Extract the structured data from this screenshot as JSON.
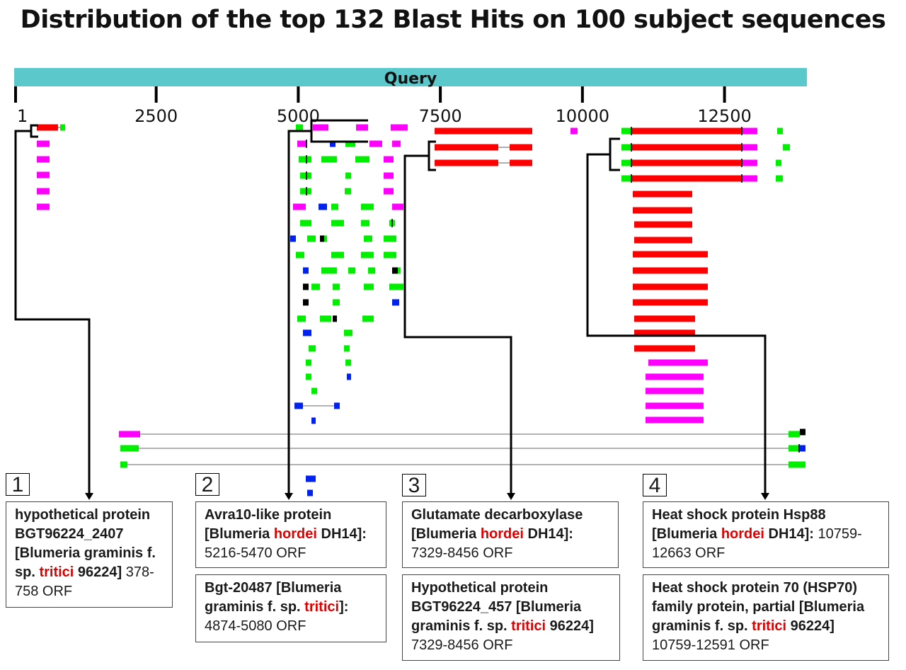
{
  "title": "Distribution of the top 132 Blast Hits on 100 subject sequences",
  "colors": {
    "query_bar": "#5bc8cc",
    "red": "#ff0000",
    "magenta": "#ff00ff",
    "green": "#00ee00",
    "blue": "#0022ee",
    "black": "#000000",
    "connector": "#999999",
    "highlight_text": "#e00000"
  },
  "chart_data": {
    "type": "alignment-map",
    "query_label": "Query",
    "axis_ticks": [
      "1",
      "2500",
      "5000",
      "7500",
      "10000",
      "12500"
    ],
    "axis_range": [
      1,
      13950
    ],
    "bracket_groups": [
      {
        "number": "1",
        "start": 378,
        "end": 758
      },
      {
        "number": "2",
        "start": 4874,
        "end": 6200
      },
      {
        "number": "3",
        "start": 7329,
        "end": 8456
      },
      {
        "number": "4",
        "start": 10759,
        "end": 12663
      }
    ]
  },
  "annotations": [
    {
      "number": "1",
      "boxes": [
        {
          "parts": [
            {
              "text": "hypothetical protein BGT96224_2407 [Blumeria graminis f. sp. ",
              "style": "bold"
            },
            {
              "text": "tritici",
              "style": "bold-red"
            },
            {
              "text": " 96224]",
              "style": "bold"
            },
            {
              "text": " 378-758 ORF",
              "style": "normal"
            }
          ]
        }
      ]
    },
    {
      "number": "2",
      "boxes": [
        {
          "parts": [
            {
              "text": "Avra10-like protein [Blumeria ",
              "style": "bold"
            },
            {
              "text": "hordei",
              "style": "bold-red"
            },
            {
              "text": " DH14]:",
              "style": "bold"
            },
            {
              "text": " 5216-5470 ORF",
              "style": "normal"
            }
          ]
        },
        {
          "parts": [
            {
              "text": "Bgt-20487 [Blumeria graminis f. sp. ",
              "style": "bold"
            },
            {
              "text": "tritici",
              "style": "bold-red"
            },
            {
              "text": "]:",
              "style": "bold"
            },
            {
              "text": " 4874-5080 ORF",
              "style": "normal"
            }
          ]
        }
      ]
    },
    {
      "number": "3",
      "boxes": [
        {
          "parts": [
            {
              "text": "Glutamate decarboxylase [Blumeria ",
              "style": "bold"
            },
            {
              "text": "hordei",
              "style": "bold-red"
            },
            {
              "text": " DH14]:",
              "style": "bold"
            },
            {
              "text": " 7329-8456 ORF",
              "style": "normal"
            }
          ]
        },
        {
          "parts": [
            {
              "text": "Hypothetical protein BGT96224_457 [Blumeria graminis f. sp. ",
              "style": "bold"
            },
            {
              "text": "tritici",
              "style": "bold-red"
            },
            {
              "text": " 96224]",
              "style": "bold"
            },
            {
              "text": " 7329-8456 ORF",
              "style": "normal"
            }
          ]
        }
      ]
    },
    {
      "number": "4",
      "boxes": [
        {
          "parts": [
            {
              "text": "Heat shock protein Hsp88 [Blumeria ",
              "style": "bold"
            },
            {
              "text": "hordei",
              "style": "bold-red"
            },
            {
              "text": " DH14]:",
              "style": "bold"
            },
            {
              "text": " 10759-12663 ORF",
              "style": "normal"
            }
          ]
        },
        {
          "parts": [
            {
              "text": "Heat shock protein 70 (HSP70) family protein, partial [Blumeria graminis f. sp. ",
              "style": "bold"
            },
            {
              "text": "tritici",
              "style": "bold-red"
            },
            {
              "text": " 96224]",
              "style": "bold"
            },
            {
              "text": " 10759-12591 ORF",
              "style": "normal"
            }
          ]
        }
      ]
    }
  ]
}
